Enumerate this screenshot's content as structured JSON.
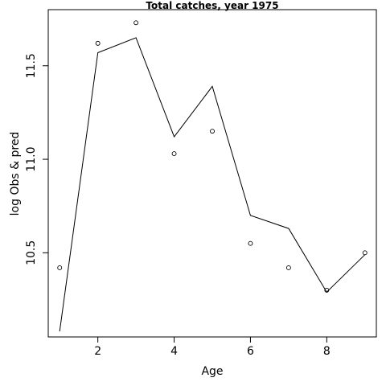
{
  "chart_data": {
    "type": "line",
    "title": "Total catches, year 1975",
    "xlabel": "Age",
    "ylabel": "log Obs & pred",
    "xlim": [
      0.7,
      9.3
    ],
    "ylim": [
      10.05,
      11.8
    ],
    "x_ticks": [
      2,
      4,
      6,
      8
    ],
    "y_ticks": [
      10.5,
      11.0,
      11.5
    ],
    "x_tick_labels": [
      "2",
      "4",
      "6",
      "8"
    ],
    "y_tick_labels": [
      "10.5",
      "11.0",
      "11.5"
    ],
    "grid": false,
    "series": [
      {
        "kind": "points",
        "x": [
          1,
          2,
          3,
          4,
          5,
          6,
          7,
          8,
          9
        ],
        "y": [
          10.42,
          11.62,
          11.73,
          11.03,
          11.15,
          10.55,
          10.42,
          10.3,
          10.5
        ]
      },
      {
        "kind": "line",
        "x": [
          1,
          2,
          3,
          4,
          5,
          6,
          7,
          8,
          9
        ],
        "y": [
          10.08,
          11.57,
          11.65,
          11.12,
          11.39,
          10.7,
          10.63,
          10.29,
          10.49
        ]
      }
    ],
    "colors": {
      "points": "#000000",
      "line": "#000000",
      "frame": "#000000"
    }
  }
}
